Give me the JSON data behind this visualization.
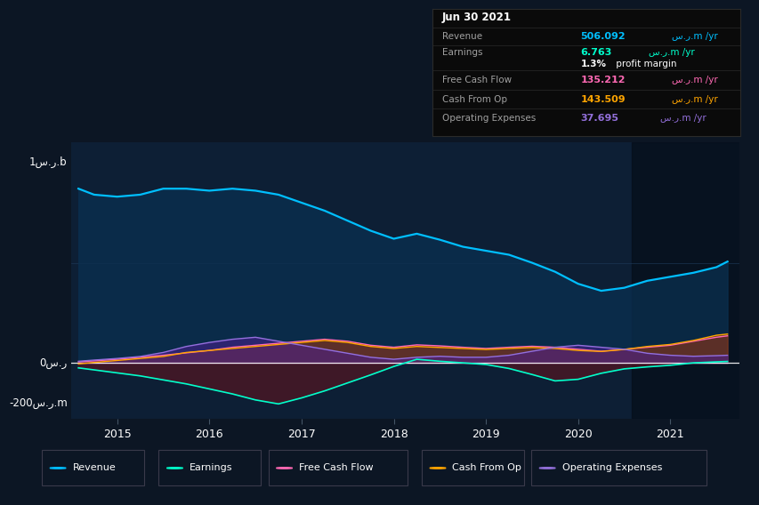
{
  "bg_color": "#0c1624",
  "plot_bg_color": "#0d1f35",
  "title": "Jun 30 2021",
  "ylabel_top": "1س.ر.b",
  "ylabel_zero": "0س.ر",
  "ylabel_bottom": "-200س.ر.m",
  "xlim": [
    2014.5,
    2021.75
  ],
  "ylim": [
    -280,
    1100
  ],
  "ytick_top": 1000,
  "ytick_zero": 0,
  "ytick_bottom": -200,
  "revenue_color": "#00bfff",
  "earnings_color": "#00ffcc",
  "fcf_color": "#ff69b4",
  "cashfromop_color": "#ffa500",
  "opex_color": "#9370db",
  "highlight_start": 2020.583,
  "x_years": [
    2014.58,
    2014.75,
    2015.0,
    2015.25,
    2015.5,
    2015.75,
    2016.0,
    2016.25,
    2016.5,
    2016.75,
    2017.0,
    2017.25,
    2017.5,
    2017.75,
    2018.0,
    2018.25,
    2018.5,
    2018.75,
    2019.0,
    2019.25,
    2019.5,
    2019.75,
    2020.0,
    2020.25,
    2020.5,
    2020.75,
    2021.0,
    2021.25,
    2021.5,
    2021.62
  ],
  "revenue": [
    870,
    840,
    830,
    840,
    870,
    870,
    860,
    870,
    860,
    840,
    800,
    760,
    710,
    660,
    620,
    645,
    615,
    580,
    560,
    540,
    500,
    455,
    395,
    360,
    375,
    410,
    430,
    450,
    478,
    506
  ],
  "earnings": [
    -25,
    -35,
    -50,
    -65,
    -85,
    -105,
    -130,
    -155,
    -185,
    -205,
    -175,
    -140,
    -100,
    -60,
    -18,
    18,
    8,
    0,
    -8,
    -28,
    -58,
    -90,
    -82,
    -52,
    -30,
    -20,
    -12,
    0,
    5,
    7
  ],
  "fcf": [
    5,
    10,
    18,
    28,
    38,
    50,
    62,
    78,
    88,
    98,
    108,
    118,
    108,
    88,
    78,
    90,
    85,
    78,
    72,
    78,
    83,
    78,
    68,
    58,
    68,
    78,
    88,
    108,
    128,
    135
  ],
  "cashfromop": [
    -5,
    2,
    12,
    22,
    32,
    52,
    62,
    72,
    82,
    92,
    102,
    112,
    102,
    82,
    72,
    82,
    77,
    72,
    67,
    72,
    77,
    72,
    62,
    57,
    67,
    82,
    92,
    112,
    138,
    144
  ],
  "opex": [
    8,
    14,
    22,
    32,
    52,
    82,
    102,
    118,
    128,
    108,
    88,
    68,
    48,
    28,
    18,
    28,
    33,
    28,
    28,
    38,
    58,
    78,
    88,
    78,
    68,
    48,
    38,
    33,
    36,
    38
  ],
  "table_rows": [
    {
      "label": "Revenue",
      "value": "506.092س.ر.m /yr",
      "color": "#00bfff"
    },
    {
      "label": "Earnings",
      "value": "6.763س.ر.m /yr",
      "color": "#00ffcc"
    },
    {
      "label": "",
      "value": "1.3% profit margin",
      "color": "white"
    },
    {
      "label": "Free Cash Flow",
      "value": "135.212س.ر.m /yr",
      "color": "#ff69b4"
    },
    {
      "label": "Cash From Op",
      "value": "143.509س.ر.m /yr",
      "color": "#ffa500"
    },
    {
      "label": "Operating Expenses",
      "value": "37.695س.ر.m /yr",
      "color": "#9370db"
    }
  ],
  "legend_items": [
    "Revenue",
    "Earnings",
    "Free Cash Flow",
    "Cash From Op",
    "Operating Expenses"
  ],
  "legend_colors": [
    "#00bfff",
    "#00ffcc",
    "#ff69b4",
    "#ffa500",
    "#9370db"
  ]
}
